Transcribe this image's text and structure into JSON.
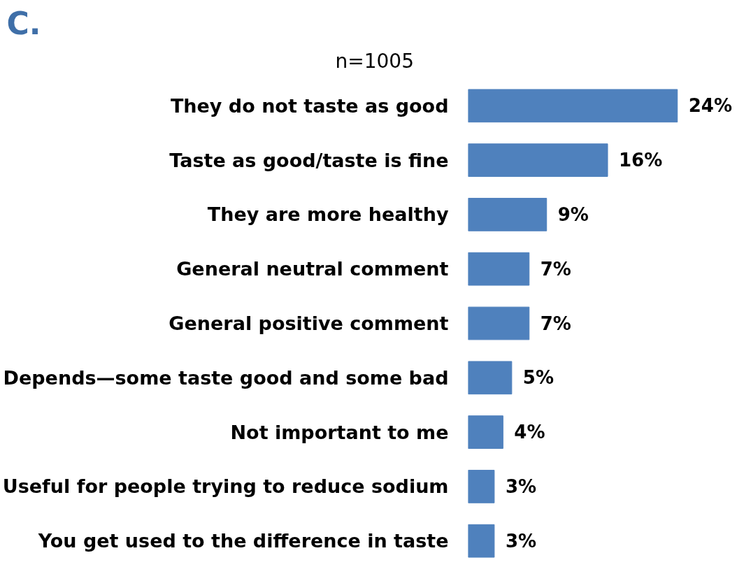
{
  "chart_data": {
    "type": "bar",
    "orientation": "horizontal",
    "title": "C.",
    "subtitle": "n=1005",
    "categories": [
      "They do not taste as good",
      "Taste as good/taste is fine",
      "They are more healthy",
      "General neutral comment",
      "General positive comment",
      "Depends—some taste good and some bad",
      "Not important to me",
      "Useful for people trying to reduce sodium",
      "You get used to the difference in taste"
    ],
    "values": [
      24,
      16,
      9,
      7,
      7,
      5,
      4,
      3,
      3
    ],
    "value_labels": [
      "24%",
      "16%",
      "9%",
      "7%",
      "7%",
      "5%",
      "4%",
      "3%",
      "3%"
    ],
    "color": "#4f81bd",
    "grid": false,
    "tick_labels": "y"
  }
}
